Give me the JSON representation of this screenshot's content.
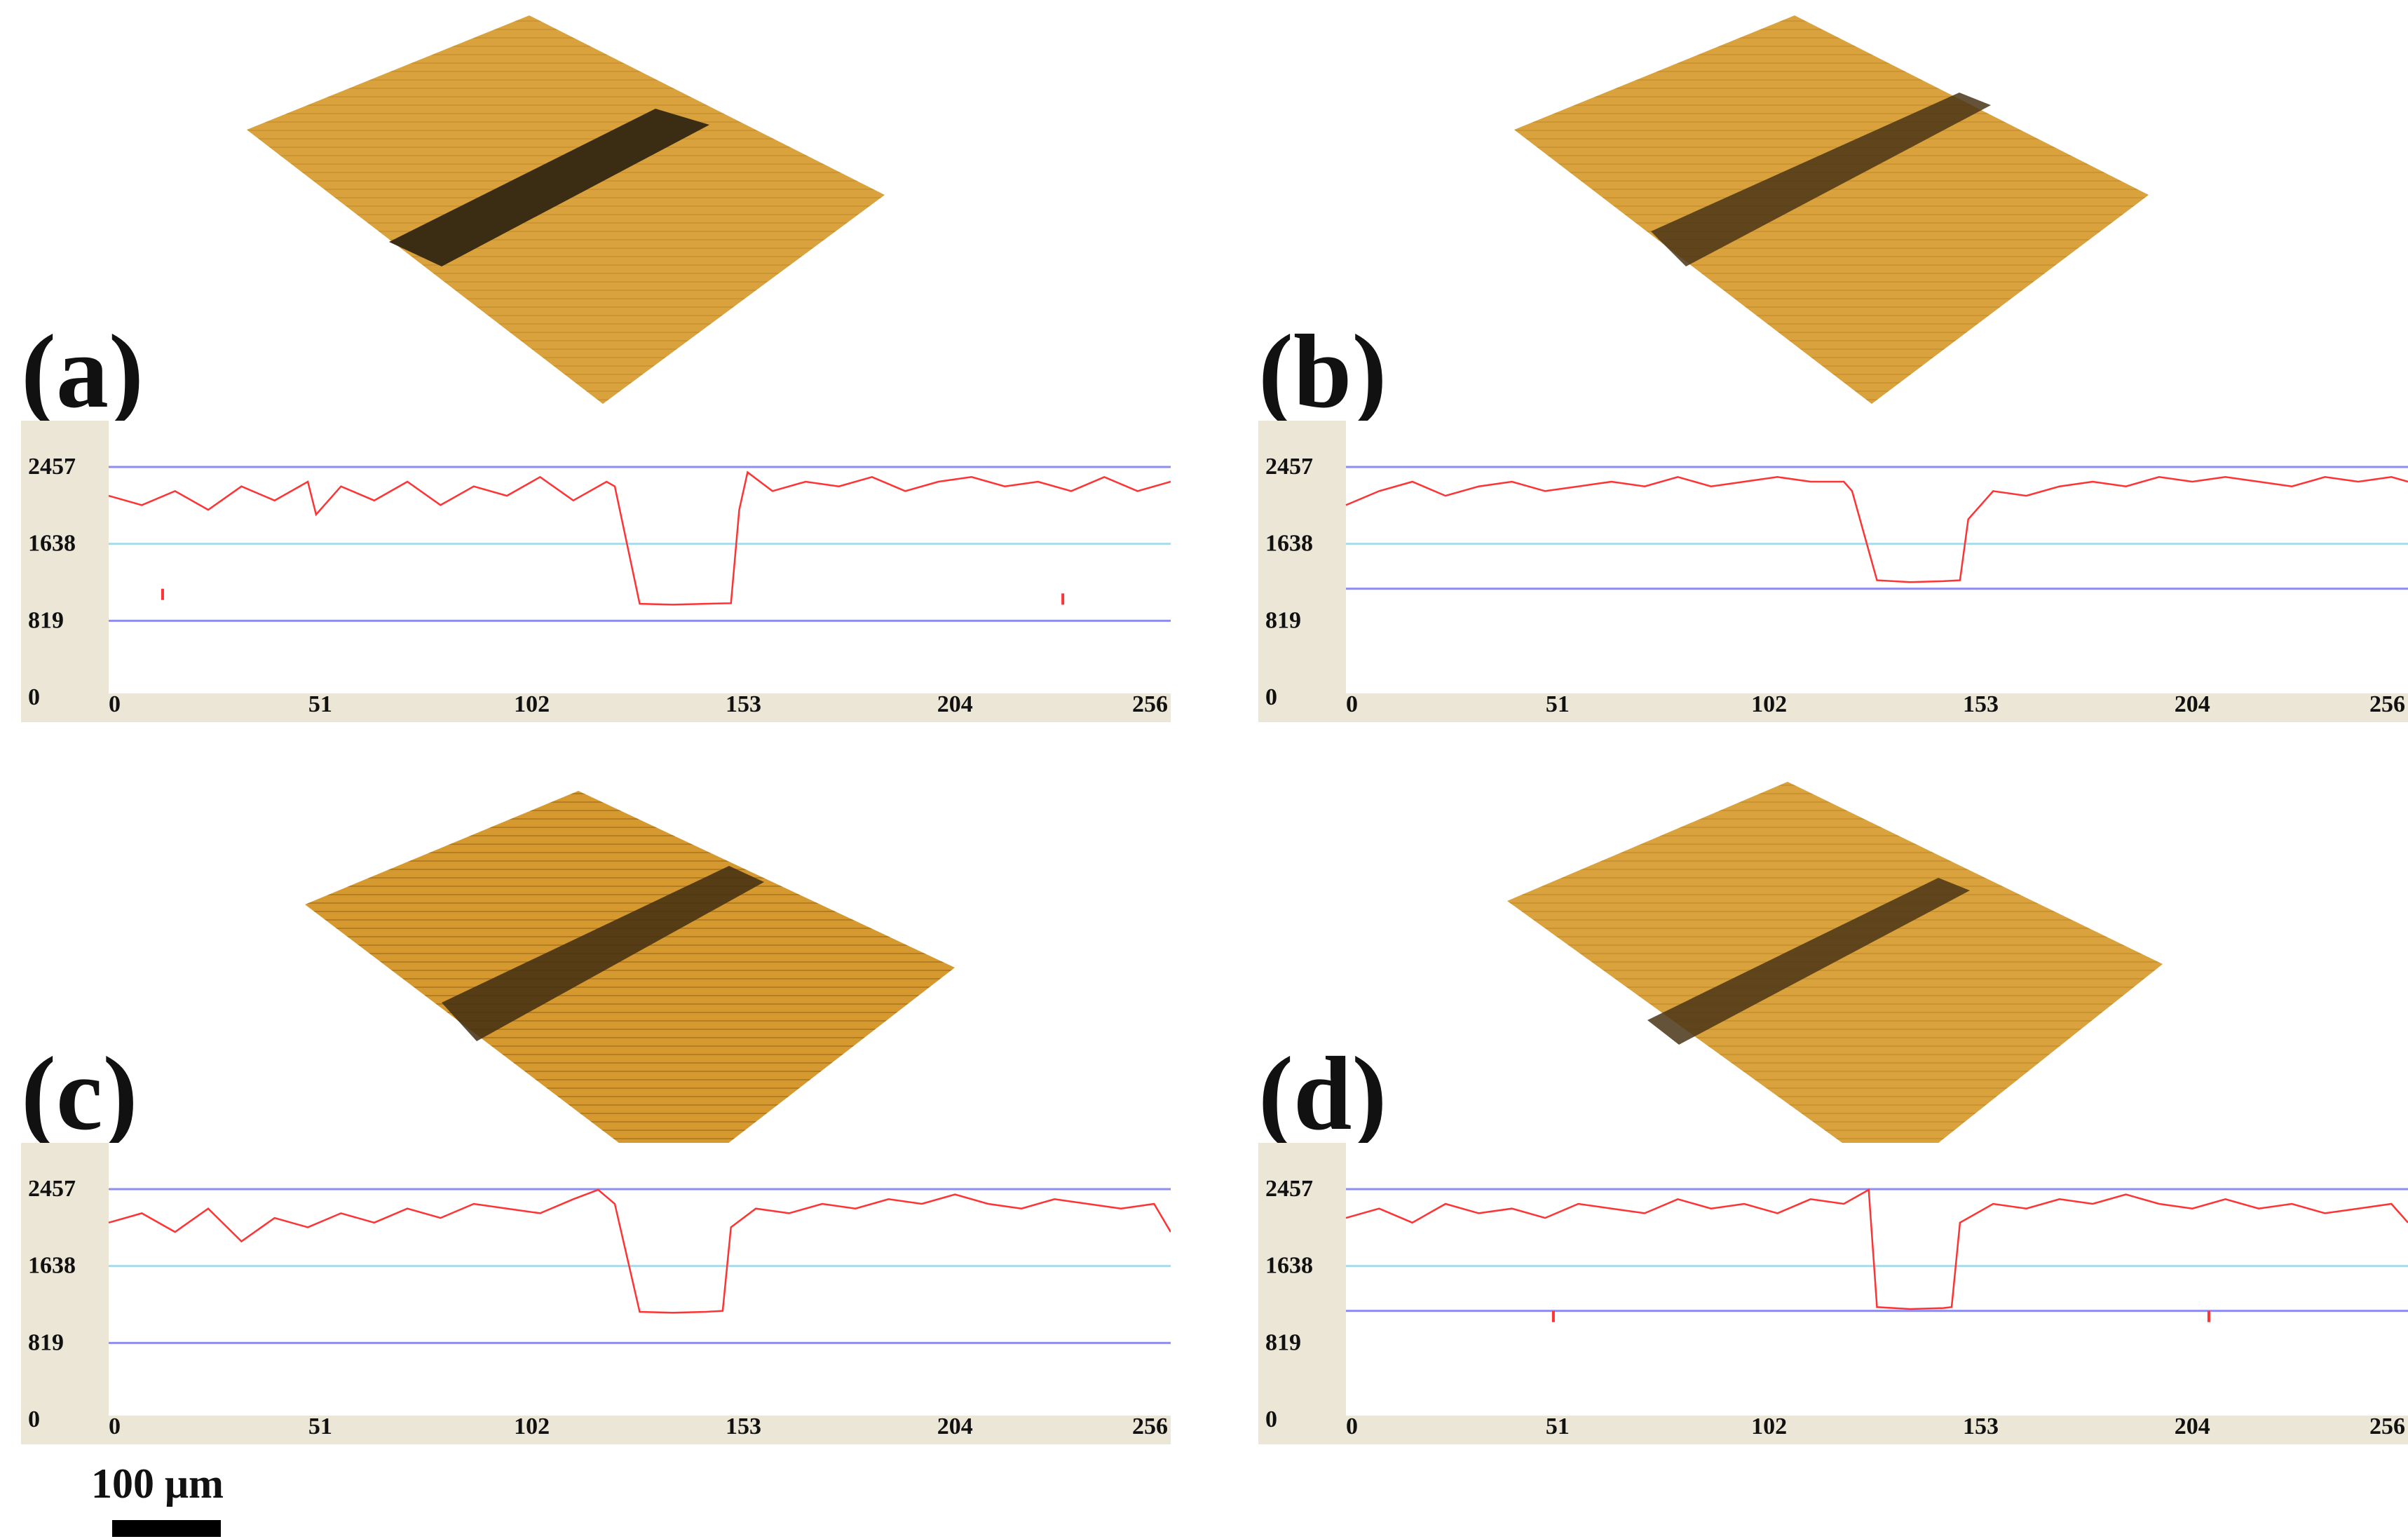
{
  "figure": {
    "scale_bar_label": "100 μm"
  },
  "colors": {
    "surface": "#d9a23c",
    "surface_dark": "#b07c22",
    "groove": "#3b2c14",
    "profile_line": "#ff3333",
    "ref_line_top": "#8d8df2",
    "ref_line_mid": "#a9dceb",
    "ref_line_bottom": "#8d8df2",
    "axis_panel": "#ece6d7"
  },
  "chart_data": [
    {
      "panel_label": "(a)",
      "type": "line",
      "title": "",
      "xlabel": "",
      "ylabel": "",
      "xlim": [
        0,
        256
      ],
      "ylim": [
        0,
        2800
      ],
      "x_ticks": [
        "0",
        "51",
        "102",
        "153",
        "204",
        "256"
      ],
      "y_ticks": [
        "2457",
        "1638",
        "819",
        "0"
      ],
      "reference_lines": [
        2457,
        1638,
        819
      ],
      "series": [
        {
          "x": [
            0,
            8,
            16,
            24,
            32,
            40,
            48,
            50,
            56,
            64,
            72,
            80,
            88,
            96,
            104,
            112,
            120,
            122,
            128,
            136,
            144,
            150,
            152,
            154,
            160,
            168,
            176,
            184,
            192,
            200,
            208,
            216,
            224,
            232,
            240,
            248,
            256
          ],
          "values": [
            2150,
            2050,
            2200,
            2000,
            2250,
            2100,
            2300,
            1950,
            2250,
            2100,
            2300,
            2050,
            2250,
            2150,
            2350,
            2100,
            2300,
            2250,
            1000,
            990,
            1000,
            1005,
            2000,
            2400,
            2200,
            2300,
            2250,
            2350,
            2200,
            2300,
            2350,
            2250,
            2300,
            2200,
            2350,
            2200,
            2300
          ]
        }
      ],
      "markers": [
        {
          "x": 13,
          "y": 1100
        },
        {
          "x": 230,
          "y": 1050
        }
      ]
    },
    {
      "panel_label": "(b)",
      "type": "line",
      "title": "",
      "xlabel": "",
      "ylabel": "",
      "xlim": [
        0,
        256
      ],
      "ylim": [
        0,
        2800
      ],
      "x_ticks": [
        "0",
        "51",
        "102",
        "153",
        "204",
        "256"
      ],
      "y_ticks": [
        "2457",
        "1638",
        "819",
        "0"
      ],
      "reference_lines": [
        2457,
        1638,
        1160
      ],
      "series": [
        {
          "x": [
            0,
            8,
            16,
            24,
            32,
            40,
            48,
            56,
            64,
            72,
            80,
            88,
            96,
            104,
            112,
            120,
            122,
            128,
            136,
            144,
            148,
            150,
            156,
            164,
            172,
            180,
            188,
            196,
            204,
            212,
            220,
            228,
            236,
            244,
            252,
            256
          ],
          "values": [
            2050,
            2200,
            2300,
            2150,
            2250,
            2300,
            2200,
            2250,
            2300,
            2250,
            2350,
            2250,
            2300,
            2350,
            2300,
            2300,
            2200,
            1250,
            1230,
            1240,
            1250,
            1900,
            2200,
            2150,
            2250,
            2300,
            2250,
            2350,
            2300,
            2350,
            2300,
            2250,
            2350,
            2300,
            2350,
            2300
          ]
        }
      ],
      "markers": []
    },
    {
      "panel_label": "(c)",
      "type": "line",
      "title": "",
      "xlabel": "",
      "ylabel": "",
      "xlim": [
        0,
        256
      ],
      "ylim": [
        0,
        2800
      ],
      "x_ticks": [
        "0",
        "51",
        "102",
        "153",
        "204",
        "256"
      ],
      "y_ticks": [
        "2457",
        "1638",
        "819",
        "0"
      ],
      "reference_lines": [
        2457,
        1638,
        819
      ],
      "series": [
        {
          "x": [
            0,
            8,
            16,
            24,
            32,
            40,
            48,
            56,
            64,
            72,
            80,
            88,
            96,
            104,
            112,
            118,
            122,
            128,
            136,
            144,
            148,
            150,
            156,
            164,
            172,
            180,
            188,
            196,
            204,
            212,
            220,
            228,
            236,
            244,
            252,
            256
          ],
          "values": [
            2100,
            2200,
            2000,
            2250,
            1900,
            2150,
            2050,
            2200,
            2100,
            2250,
            2150,
            2300,
            2250,
            2200,
            2350,
            2450,
            2300,
            1150,
            1140,
            1150,
            1160,
            2050,
            2250,
            2200,
            2300,
            2250,
            2350,
            2300,
            2400,
            2300,
            2250,
            2350,
            2300,
            2250,
            2300,
            2000
          ]
        }
      ],
      "markers": []
    },
    {
      "panel_label": "(d)",
      "type": "line",
      "title": "",
      "xlabel": "",
      "ylabel": "",
      "xlim": [
        0,
        256
      ],
      "ylim": [
        0,
        2800
      ],
      "x_ticks": [
        "0",
        "51",
        "102",
        "153",
        "204",
        "256"
      ],
      "y_ticks": [
        "2457",
        "1638",
        "819",
        "0"
      ],
      "reference_lines": [
        2457,
        1638,
        1160
      ],
      "series": [
        {
          "x": [
            0,
            8,
            16,
            24,
            32,
            40,
            48,
            56,
            64,
            72,
            80,
            88,
            96,
            104,
            112,
            120,
            126,
            128,
            136,
            144,
            146,
            148,
            156,
            164,
            172,
            180,
            188,
            196,
            204,
            212,
            220,
            228,
            236,
            244,
            252,
            256
          ],
          "values": [
            2150,
            2250,
            2100,
            2300,
            2200,
            2250,
            2150,
            2300,
            2250,
            2200,
            2350,
            2250,
            2300,
            2200,
            2350,
            2300,
            2450,
            1200,
            1180,
            1190,
            1200,
            2100,
            2300,
            2250,
            2350,
            2300,
            2400,
            2300,
            2250,
            2350,
            2250,
            2300,
            2200,
            2250,
            2300,
            2100
          ]
        }
      ],
      "markers": [
        {
          "x": 50,
          "y": 1100
        },
        {
          "x": 208,
          "y": 1100
        }
      ]
    }
  ]
}
